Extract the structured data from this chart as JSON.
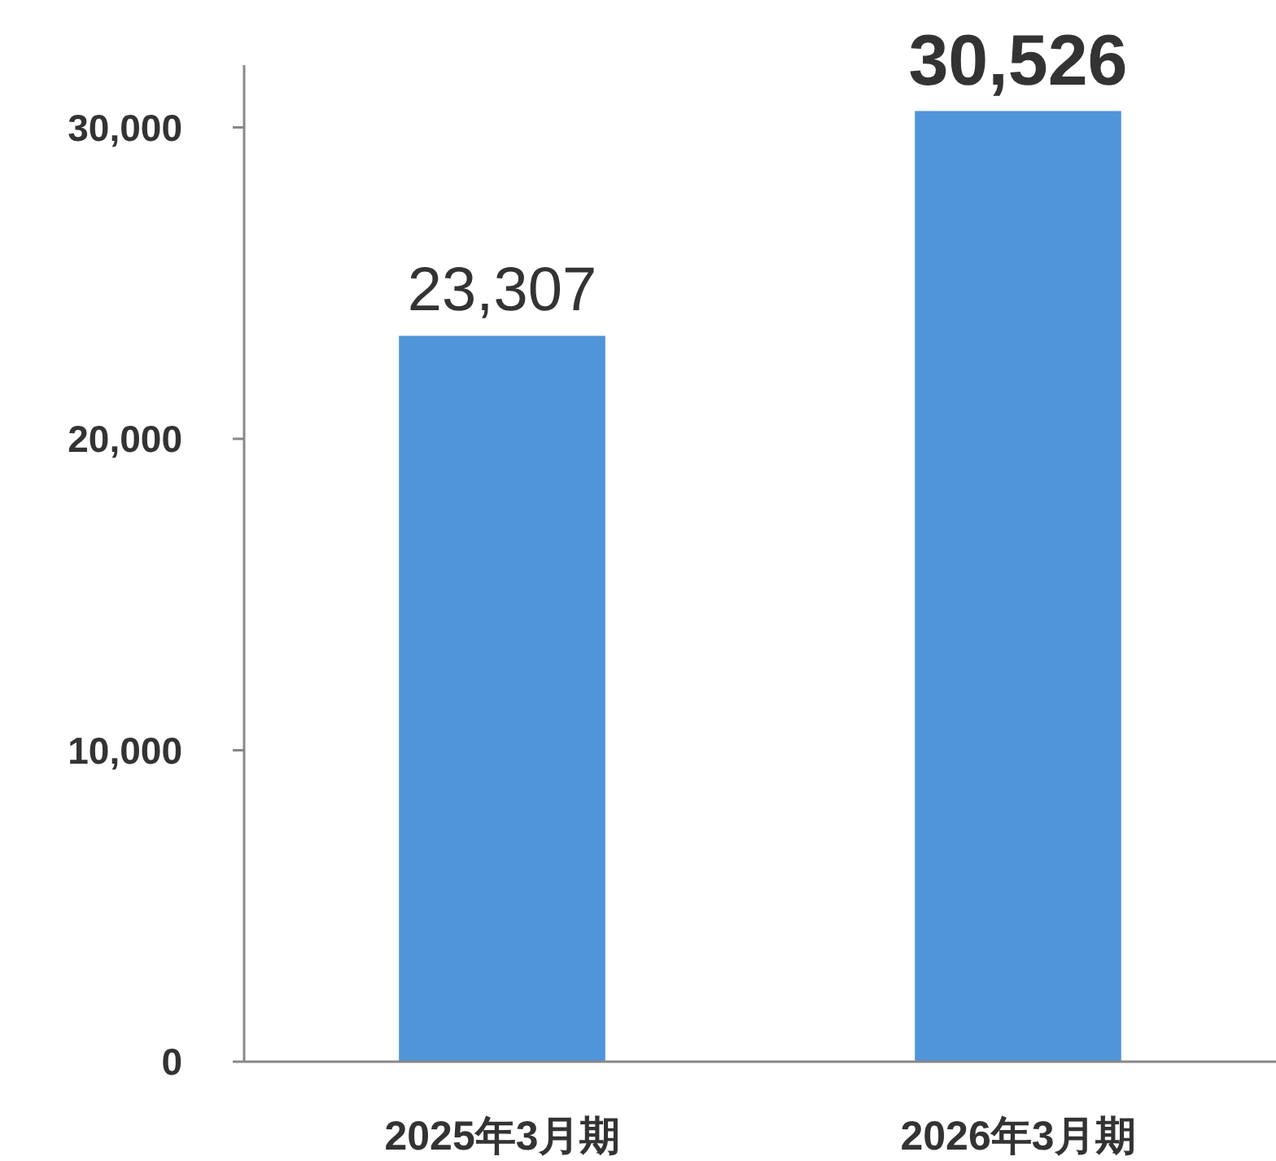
{
  "chart_data": {
    "type": "bar",
    "categories": [
      "2025年3月期",
      "2026年3月期"
    ],
    "values": [
      23307,
      30526
    ],
    "value_labels": [
      "23,307",
      "30,526"
    ],
    "color": "#5094d9",
    "ylim": [
      0,
      32000
    ],
    "yticks": [
      0,
      {
        "value": 10000,
        "label": "10,000"
      },
      {
        "value": 20000,
        "label": "20,000"
      },
      {
        "value": 30000,
        "label": "30,000"
      }
    ],
    "grid": false
  }
}
